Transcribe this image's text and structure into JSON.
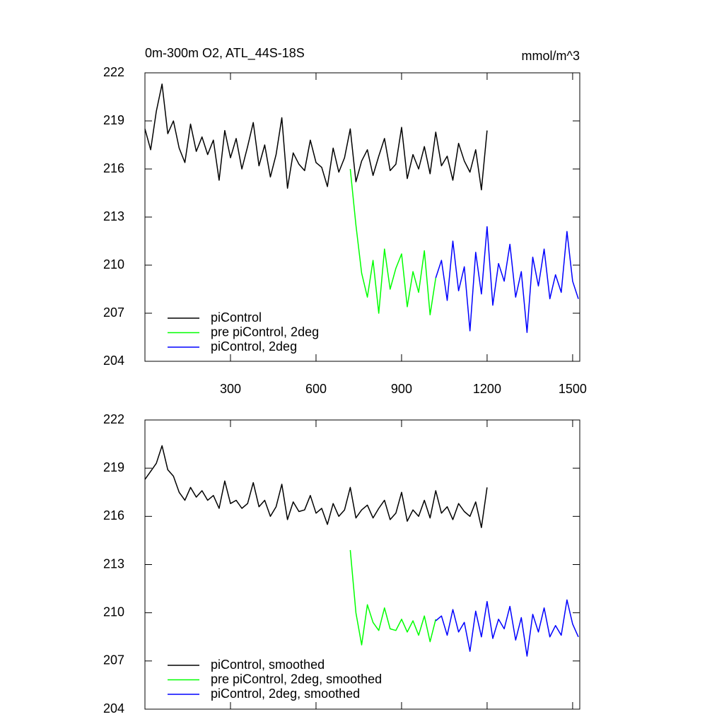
{
  "chart_data": [
    {
      "type": "line",
      "title": "0m-300m O2, ATL_44S-18S",
      "units": "mmol/m^3",
      "xlim": [
        0,
        1525
      ],
      "ylim": [
        204,
        222
      ],
      "xticks": [
        300,
        600,
        900,
        1200,
        1500
      ],
      "yticks": [
        204,
        207,
        210,
        213,
        216,
        219,
        222
      ],
      "legend": "lower left",
      "series": [
        {
          "name": "piControl",
          "color": "#000000",
          "x": [
            0,
            20,
            40,
            60,
            80,
            100,
            120,
            140,
            160,
            180,
            200,
            220,
            240,
            260,
            280,
            300,
            320,
            340,
            360,
            380,
            400,
            420,
            440,
            460,
            480,
            500,
            520,
            540,
            560,
            580,
            600,
            620,
            640,
            660,
            680,
            700,
            720,
            740,
            760,
            780,
            800,
            820,
            840,
            860,
            880,
            900,
            920,
            940,
            960,
            980,
            1000,
            1020,
            1040,
            1060,
            1080,
            1100,
            1120,
            1140,
            1160,
            1180,
            1200
          ],
          "values": [
            218.5,
            217.2,
            219.6,
            221.3,
            218.2,
            219.0,
            217.3,
            216.4,
            218.8,
            217.1,
            218.0,
            216.9,
            217.8,
            215.3,
            218.4,
            216.7,
            217.9,
            216.0,
            217.4,
            218.9,
            216.2,
            217.5,
            215.5,
            216.9,
            219.2,
            214.8,
            217.0,
            216.3,
            215.9,
            217.8,
            216.4,
            216.1,
            214.9,
            217.3,
            215.8,
            216.7,
            218.5,
            215.2,
            216.5,
            217.2,
            215.6,
            216.8,
            217.9,
            215.9,
            216.3,
            218.6,
            215.4,
            216.9,
            216.0,
            217.4,
            215.7,
            218.3,
            216.2,
            216.8,
            215.3,
            217.6,
            216.5,
            215.8,
            217.2,
            214.7,
            218.4
          ]
        },
        {
          "name": "pre piControl, 2deg",
          "color": "#00ff00",
          "x": [
            720,
            740,
            760,
            780,
            800,
            820,
            840,
            860,
            880,
            900,
            920,
            940,
            960,
            980,
            1000,
            1020
          ],
          "values": [
            216.0,
            212.5,
            209.5,
            208.0,
            210.3,
            207.0,
            211.0,
            208.5,
            209.8,
            210.7,
            207.4,
            209.6,
            208.3,
            210.9,
            206.9,
            209.2
          ]
        },
        {
          "name": "piControl, 2deg",
          "color": "#0000ff",
          "x": [
            1020,
            1040,
            1060,
            1080,
            1100,
            1120,
            1140,
            1160,
            1180,
            1200,
            1220,
            1240,
            1260,
            1280,
            1300,
            1320,
            1340,
            1360,
            1380,
            1400,
            1420,
            1440,
            1460,
            1480,
            1500,
            1520
          ],
          "values": [
            209.2,
            210.3,
            207.8,
            211.5,
            208.4,
            209.9,
            205.9,
            210.8,
            208.2,
            212.4,
            207.5,
            210.1,
            209.0,
            211.3,
            208.0,
            209.6,
            205.8,
            210.5,
            208.7,
            211.0,
            207.9,
            209.4,
            208.3,
            212.1,
            209.0,
            207.9
          ]
        }
      ]
    },
    {
      "type": "line",
      "xlim": [
        0,
        1525
      ],
      "ylim": [
        204,
        222
      ],
      "xticks": [
        300,
        600,
        900,
        1200,
        1500
      ],
      "yticks": [
        204,
        207,
        210,
        213,
        216,
        219,
        222
      ],
      "legend": "lower left",
      "series": [
        {
          "name": "piControl, smoothed",
          "color": "#000000",
          "x": [
            0,
            20,
            40,
            60,
            80,
            100,
            120,
            140,
            160,
            180,
            200,
            220,
            240,
            260,
            280,
            300,
            320,
            340,
            360,
            380,
            400,
            420,
            440,
            460,
            480,
            500,
            520,
            540,
            560,
            580,
            600,
            620,
            640,
            660,
            680,
            700,
            720,
            740,
            760,
            780,
            800,
            820,
            840,
            860,
            880,
            900,
            920,
            940,
            960,
            980,
            1000,
            1020,
            1040,
            1060,
            1080,
            1100,
            1120,
            1140,
            1160,
            1180,
            1200
          ],
          "values": [
            218.3,
            218.8,
            219.3,
            220.4,
            218.9,
            218.5,
            217.5,
            217.0,
            217.8,
            217.2,
            217.6,
            217.0,
            217.3,
            216.5,
            218.2,
            216.8,
            217.0,
            216.5,
            216.8,
            218.1,
            216.6,
            217.0,
            216.0,
            216.6,
            218.0,
            215.8,
            216.9,
            216.3,
            216.4,
            217.3,
            216.2,
            216.5,
            215.5,
            216.8,
            216.0,
            216.4,
            217.8,
            215.9,
            216.4,
            216.7,
            215.9,
            216.5,
            217.0,
            215.8,
            216.2,
            217.5,
            215.7,
            216.4,
            216.0,
            217.0,
            215.9,
            217.6,
            216.2,
            216.6,
            215.8,
            216.8,
            216.3,
            216.0,
            216.9,
            215.3,
            217.8
          ]
        },
        {
          "name": "pre piControl, 2deg, smoothed",
          "color": "#00ff00",
          "x": [
            720,
            740,
            760,
            780,
            800,
            820,
            840,
            860,
            880,
            900,
            920,
            940,
            960,
            980,
            1000,
            1020
          ],
          "values": [
            213.9,
            210.0,
            208.0,
            210.5,
            209.4,
            208.9,
            210.3,
            209.0,
            208.9,
            209.6,
            208.8,
            209.5,
            208.6,
            209.8,
            208.2,
            209.6
          ]
        },
        {
          "name": "piControl, 2deg, smoothed",
          "color": "#0000ff",
          "x": [
            1020,
            1040,
            1060,
            1080,
            1100,
            1120,
            1140,
            1160,
            1180,
            1200,
            1220,
            1240,
            1260,
            1280,
            1300,
            1320,
            1340,
            1360,
            1380,
            1400,
            1420,
            1440,
            1460,
            1480,
            1500,
            1520
          ],
          "values": [
            209.5,
            209.8,
            208.6,
            210.2,
            208.8,
            209.4,
            207.6,
            210.1,
            208.5,
            210.7,
            208.4,
            209.6,
            209.0,
            210.4,
            208.3,
            209.7,
            207.3,
            209.9,
            208.8,
            210.3,
            208.5,
            209.2,
            208.6,
            210.8,
            209.3,
            208.5
          ]
        }
      ]
    }
  ]
}
